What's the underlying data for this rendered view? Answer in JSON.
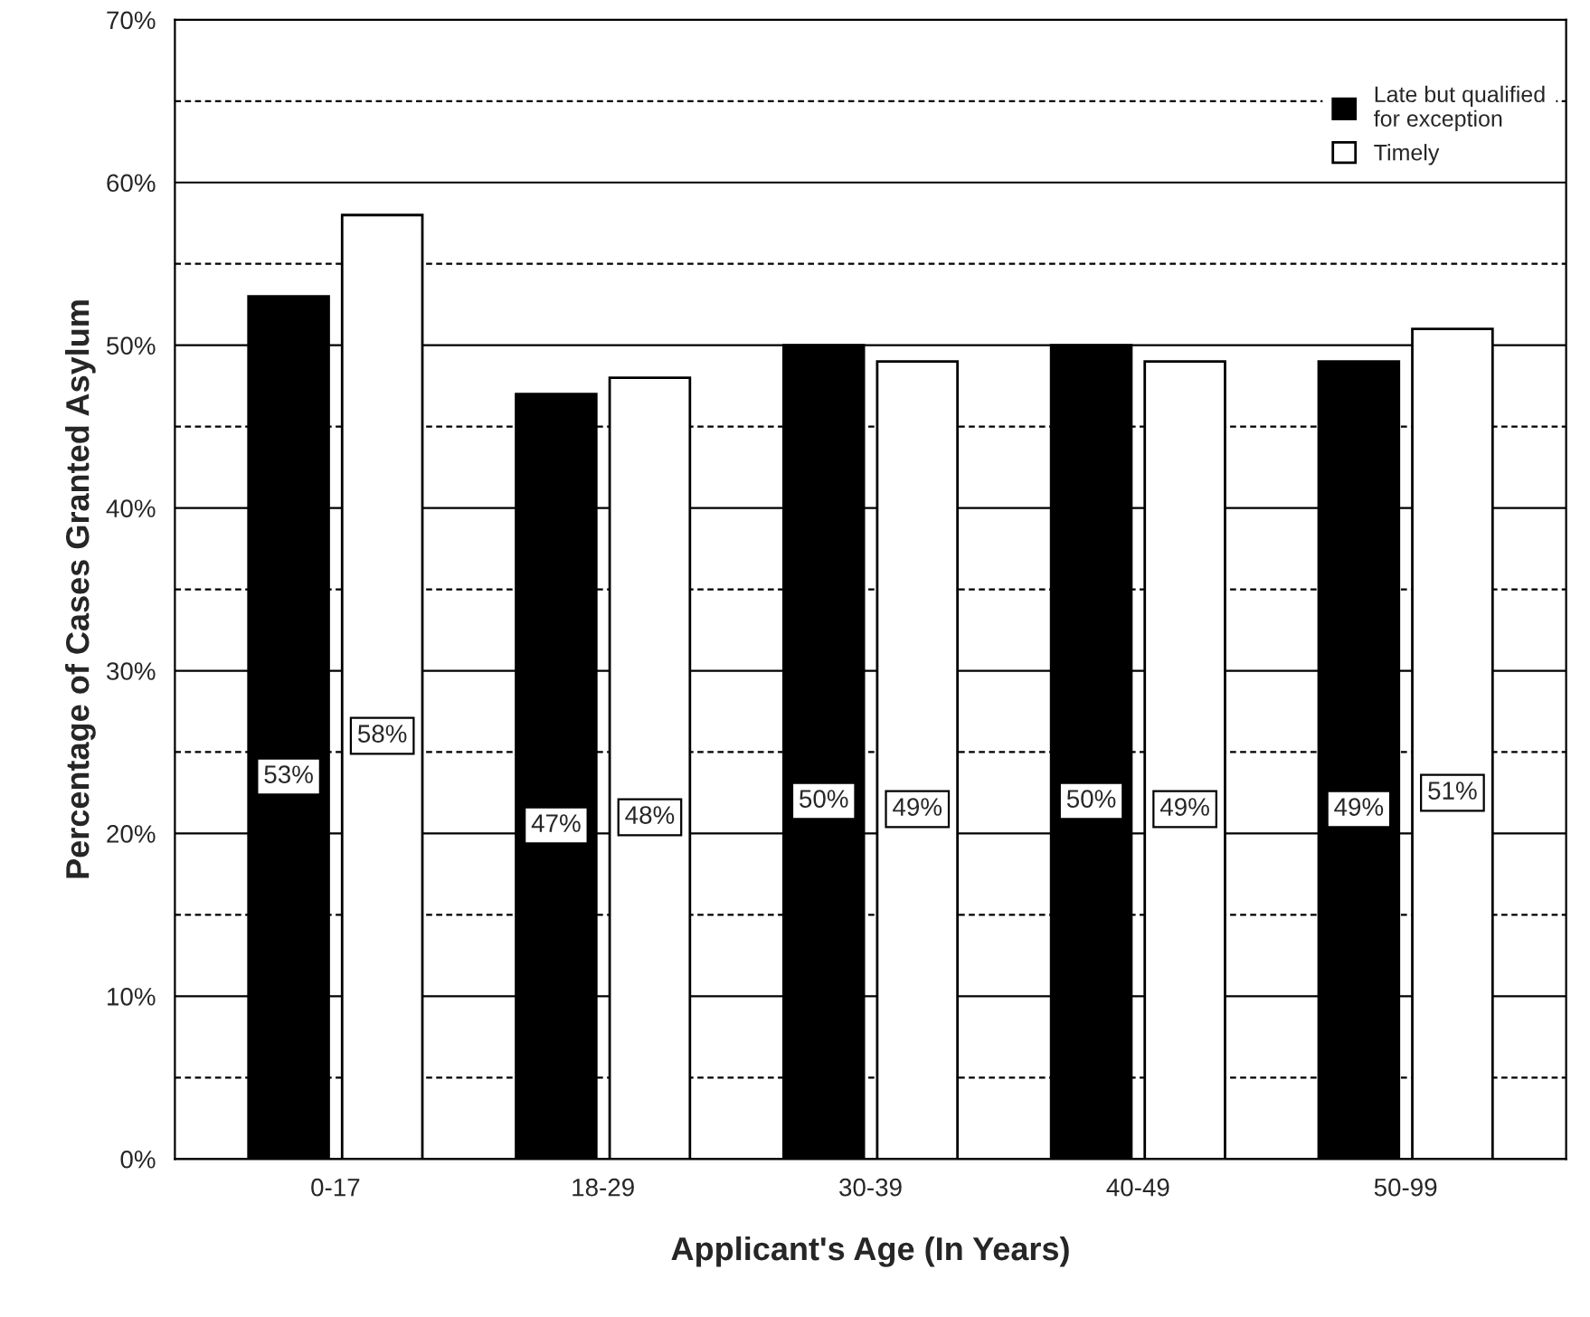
{
  "chart_data": {
    "type": "bar",
    "xlabel": "Applicant's Age (In Years)",
    "ylabel": "Percentage of Cases Granted Asylum",
    "categories": [
      "0-17",
      "18-29",
      "30-39",
      "40-49",
      "50-99"
    ],
    "series": [
      {
        "name": "Late but qualified\nfor exception",
        "color": "#000000",
        "values": [
          53,
          47,
          50,
          50,
          49
        ],
        "value_labels": [
          "53%",
          "47%",
          "50%",
          "50%",
          "49%"
        ]
      },
      {
        "name": "Timely",
        "color": "#ffffff",
        "values": [
          58,
          48,
          49,
          49,
          51
        ],
        "value_labels": [
          "58%",
          "48%",
          "49%",
          "49%",
          "51%"
        ]
      }
    ],
    "ylim": [
      0,
      70
    ],
    "yticks": [
      {
        "value": 0,
        "label": "0%"
      },
      {
        "value": 5,
        "label": null
      },
      {
        "value": 10,
        "label": "10%"
      },
      {
        "value": 15,
        "label": null
      },
      {
        "value": 20,
        "label": "20%"
      },
      {
        "value": 25,
        "label": null
      },
      {
        "value": 30,
        "label": "30%"
      },
      {
        "value": 35,
        "label": null
      },
      {
        "value": 40,
        "label": "40%"
      },
      {
        "value": 45,
        "label": null
      },
      {
        "value": 50,
        "label": "50%"
      },
      {
        "value": 55,
        "label": null
      },
      {
        "value": 60,
        "label": "60%"
      },
      {
        "value": 65,
        "label": null
      },
      {
        "value": 70,
        "label": "70%"
      }
    ],
    "grid": "y",
    "legend": "top right"
  }
}
